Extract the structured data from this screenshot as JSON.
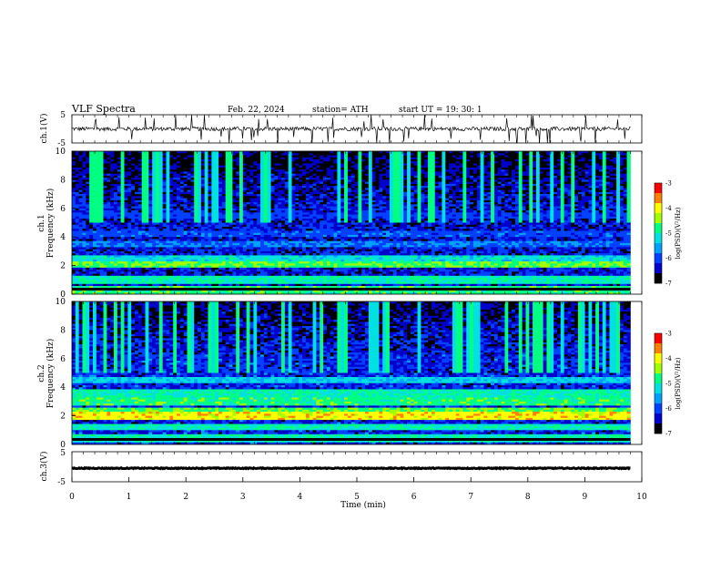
{
  "header": {
    "title": "VLF  Spectra",
    "date": "Feb. 22, 2024",
    "station": "station= ATH",
    "start": "start  UT  =    19: 30: 1"
  },
  "chart_data": [
    {
      "type": "line",
      "name": "ch1-waveform",
      "ylabel": "ch.1(V)",
      "ylim": [
        -5,
        5
      ],
      "y_ticks": [
        "5",
        "-5"
      ],
      "xlim": [
        0,
        10
      ],
      "baseline": 0,
      "noise_amplitude": 0.7,
      "spike_count": 60
    },
    {
      "type": "heatmap",
      "name": "ch1-spectrogram",
      "ylabel": "ch.1\nFrequency (kHz)",
      "ylabel_lines": [
        "ch.1",
        "Frequency (kHz)"
      ],
      "y_ticks": [
        "10",
        "8",
        "6",
        "4",
        "2",
        "0"
      ],
      "ylim": [
        0,
        10
      ],
      "xlim": [
        0,
        9.8
      ],
      "colorbar": {
        "label": "log(PSD)(V²/Hz)",
        "ticks": [
          "-3",
          "-4",
          "-5",
          "-6",
          "-7"
        ],
        "range": [
          -7,
          -3
        ]
      },
      "bands_khz": [
        {
          "f": 2.1,
          "level": -4.6
        },
        {
          "f": 2.4,
          "level": -5.2
        },
        {
          "f": 1.0,
          "level": -5.0
        },
        {
          "f": 0.3,
          "level": -4.8
        },
        {
          "f": 3.5,
          "level": -5.8
        },
        {
          "f": 4.2,
          "level": -6.0
        },
        {
          "f": 5.5,
          "level": -6.1
        }
      ],
      "background_level": -6.3
    },
    {
      "type": "heatmap",
      "name": "ch2-spectrogram",
      "ylabel": "ch.2\nFrequency (kHz)",
      "ylabel_lines": [
        "ch.2",
        "Frequency (kHz)"
      ],
      "y_ticks": [
        "10",
        "8",
        "6",
        "4",
        "2",
        "0"
      ],
      "ylim": [
        0,
        10
      ],
      "xlim": [
        0,
        9.8
      ],
      "colorbar": {
        "label": "log(PSD)(V²/Hz)",
        "ticks": [
          "-3",
          "-4",
          "-5",
          "-6",
          "-7"
        ],
        "range": [
          -7,
          -3
        ]
      },
      "bands_khz": [
        {
          "f": 2.0,
          "level": -4.0
        },
        {
          "f": 2.3,
          "level": -4.6
        },
        {
          "f": 3.0,
          "level": -4.8
        },
        {
          "f": 3.6,
          "level": -5.0
        },
        {
          "f": 1.2,
          "level": -5.0
        },
        {
          "f": 4.5,
          "level": -5.3
        },
        {
          "f": 0.4,
          "level": -5.0
        }
      ],
      "background_level": -6.2
    },
    {
      "type": "line",
      "name": "ch3-waveform",
      "ylabel": "ch.3(V)",
      "ylim": [
        -5,
        5
      ],
      "y_ticks": [
        "5",
        "-5"
      ],
      "xlim": [
        0,
        10
      ],
      "baseline": -0.5,
      "noise_amplitude": 0.15
    }
  ],
  "x_axis": {
    "label": "Time  (min)",
    "ticks": [
      "0",
      "1",
      "2",
      "3",
      "4",
      "5",
      "6",
      "7",
      "8",
      "9",
      "10"
    ],
    "range": [
      0,
      10
    ]
  },
  "colormap": [
    "#000000",
    "#0000cc",
    "#0040ff",
    "#00a0ff",
    "#00e0e0",
    "#00ff80",
    "#a0ff00",
    "#ffff00",
    "#ff8000",
    "#ff0000",
    "#ffffff"
  ]
}
